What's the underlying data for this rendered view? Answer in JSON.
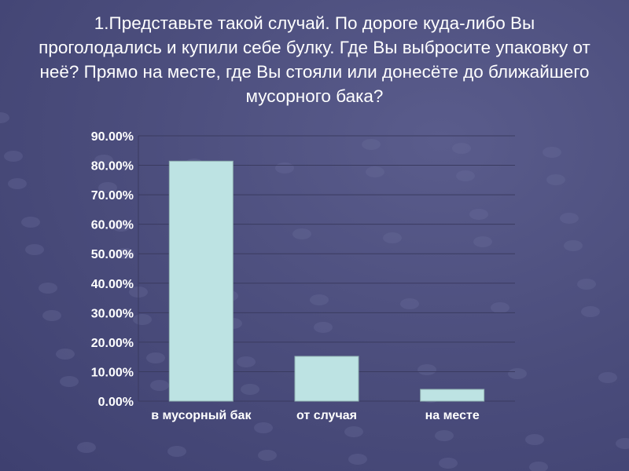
{
  "chart_data": {
    "type": "bar",
    "title": "1.Представьте такой случай. По дороге куда-либо Вы проголодались и купили себе булку. Где  Вы выбросите упаковку от неё? Прямо на месте, где Вы стояли или донесёте до ближайшего мусорного бака?",
    "categories": [
      "в мусорный бак",
      "от случая",
      "на месте"
    ],
    "values": [
      81.4,
      15.2,
      4.0
    ],
    "ylim": [
      0,
      90
    ],
    "yticks": [
      "0.00%",
      "10.00%",
      "20.00%",
      "30.00%",
      "40.00%",
      "50.00%",
      "60.00%",
      "70.00%",
      "80.00%",
      "90.00%"
    ],
    "xlabel": "",
    "ylabel": "",
    "grid": true,
    "bar_color": "#bde3e3"
  }
}
